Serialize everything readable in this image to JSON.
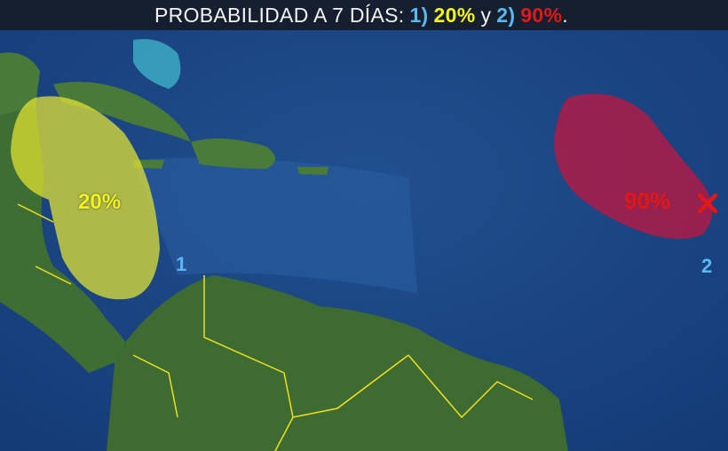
{
  "banner": {
    "title": "PROBABILIDAD A 7 DÍAS:",
    "item1_marker": "1)",
    "item1_value": "20%",
    "conjunction": "y",
    "item2_marker": "2)",
    "item2_value": "90%",
    "end": "."
  },
  "areas": [
    {
      "id": "1",
      "probability": "20%",
      "color": "#e6e632"
    },
    {
      "id": "2",
      "probability": "90%",
      "color": "#c8143c"
    }
  ],
  "storm_icon": "x-mark-icon",
  "colors": {
    "ocean": "#1d4a8a",
    "land": "#3f6e34",
    "borders": "#f0e020",
    "label_number": "#5ab8f0"
  }
}
